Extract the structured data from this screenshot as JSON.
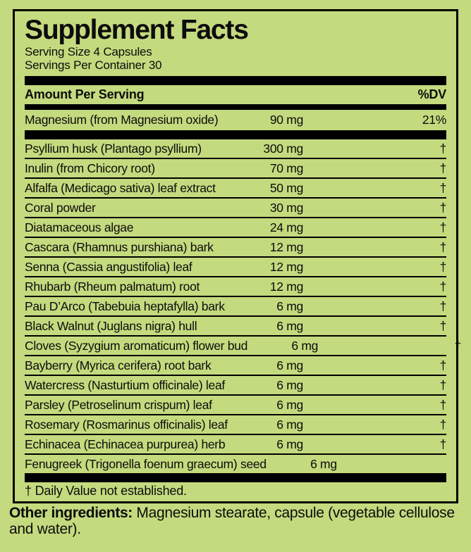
{
  "colors": {
    "background": "#c4da7e",
    "ink": "#0c0c0c"
  },
  "label": {
    "title": "Supplement Facts",
    "serving_size": "Serving Size 4 Capsules",
    "servings_per_container": "Servings Per Container 30",
    "header": {
      "amount": "Amount Per Serving",
      "dv": "%DV"
    },
    "main_row": {
      "name": "Magnesium (from Magnesium oxide)",
      "amount": "90 mg",
      "dv": "21%"
    },
    "rows": [
      {
        "name": "Psyllium husk (Plantago psyllium)",
        "amount": "300 mg",
        "dv": "†"
      },
      {
        "name": "Inulin (from Chicory root)",
        "amount": "70 mg",
        "dv": "†"
      },
      {
        "name": "Alfalfa (Medicago sativa) leaf extract",
        "amount": "50 mg",
        "dv": "†"
      },
      {
        "name": "Coral powder",
        "amount": "30 mg",
        "dv": "†"
      },
      {
        "name": "Diatamaceous algae",
        "amount": "24 mg",
        "dv": "†"
      },
      {
        "name": "Cascara (Rhamnus purshiana) bark",
        "amount": "12 mg",
        "dv": "†"
      },
      {
        "name": "Senna (Cassia angustifolia) leaf",
        "amount": "12 mg",
        "dv": "†"
      },
      {
        "name": "Rhubarb (Rheum palmatum) root",
        "amount": "12 mg",
        "dv": "†"
      },
      {
        "name": "Pau D’Arco (Tabebuia heptafylla) bark",
        "amount": "6 mg",
        "dv": "†"
      },
      {
        "name": "Black Walnut (Juglans nigra) hull",
        "amount": "6 mg",
        "dv": "†"
      },
      {
        "name": "Cloves (Syzygium aromaticum) flower bud",
        "amount": "6 mg",
        "dv": "†"
      },
      {
        "name": "Bayberry (Myrica cerifera) root bark",
        "amount": "6 mg",
        "dv": "†"
      },
      {
        "name": "Watercress (Nasturtium officinale) leaf",
        "amount": "6 mg",
        "dv": "†"
      },
      {
        "name": "Parsley (Petroselinum crispum) leaf",
        "amount": "6 mg",
        "dv": "†"
      },
      {
        "name": "Rosemary (Rosmarinus officinalis) leaf",
        "amount": "6 mg",
        "dv": "†"
      },
      {
        "name": "Echinacea (Echinacea purpurea) herb",
        "amount": "6 mg",
        "dv": "†"
      },
      {
        "name": "Fenugreek (Trigonella foenum graecum) seed",
        "amount": "6 mg",
        "dv": "†"
      }
    ],
    "footnote": "† Daily Value not established.",
    "other_ingredients_label": "Other ingredients:",
    "other_ingredients_text": "Magnesium stearate, capsule (vegetable cellulose and water)."
  }
}
